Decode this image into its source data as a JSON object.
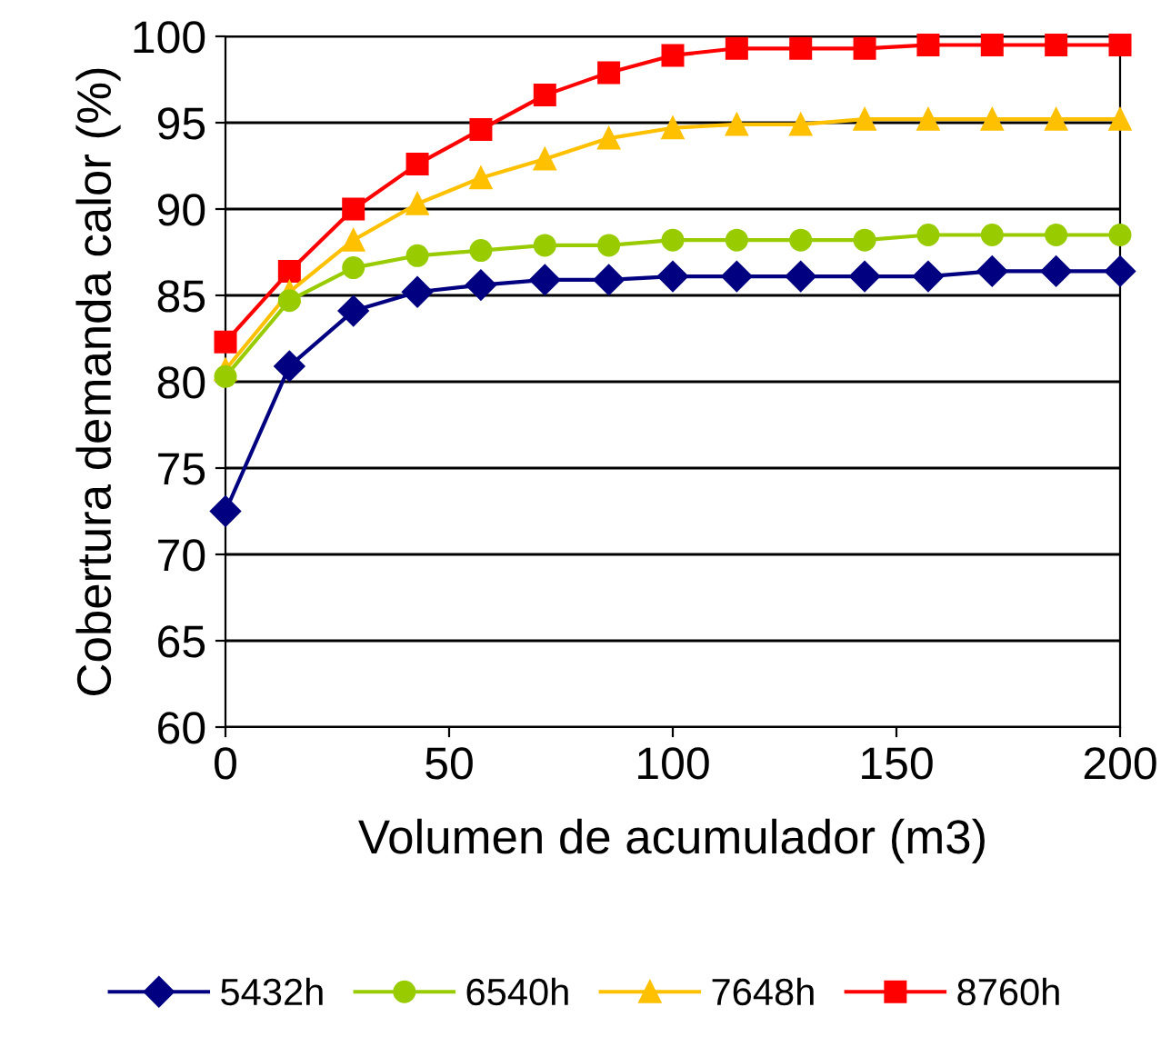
{
  "chart_data": {
    "type": "line",
    "xlabel": "Volumen de acumulador (m3)",
    "ylabel": "Cobertura demanda calor (%)",
    "x": [
      0,
      14.3,
      28.6,
      42.9,
      57.1,
      71.4,
      85.7,
      100,
      114.3,
      128.6,
      142.9,
      157.1,
      171.4,
      185.7,
      200
    ],
    "series": [
      {
        "name": "5432h",
        "color": "#000080",
        "marker": "diamond",
        "values": [
          72.5,
          80.9,
          84.1,
          85.2,
          85.6,
          85.9,
          85.9,
          86.1,
          86.1,
          86.1,
          86.1,
          86.1,
          86.4,
          86.4,
          86.4
        ]
      },
      {
        "name": "6540h",
        "color": "#99cc00",
        "marker": "circle",
        "values": [
          80.3,
          84.7,
          86.6,
          87.3,
          87.6,
          87.9,
          87.9,
          88.2,
          88.2,
          88.2,
          88.2,
          88.5,
          88.5,
          88.5,
          88.5
        ]
      },
      {
        "name": "7648h",
        "color": "#ffc000",
        "marker": "triangle",
        "values": [
          80.7,
          85.2,
          88.2,
          90.3,
          91.8,
          92.9,
          94.1,
          94.7,
          94.9,
          94.9,
          95.2,
          95.2,
          95.2,
          95.2,
          95.2
        ]
      },
      {
        "name": "8760h",
        "color": "#ff0000",
        "marker": "square",
        "values": [
          82.3,
          86.4,
          90.0,
          92.6,
          94.6,
          96.6,
          97.9,
          98.9,
          99.3,
          99.3,
          99.3,
          99.5,
          99.5,
          99.5,
          99.5
        ]
      }
    ],
    "xlim": [
      0,
      200
    ],
    "xticks": [
      0,
      50,
      100,
      150,
      200
    ],
    "ylim": [
      60,
      100
    ],
    "yticks": [
      60,
      65,
      70,
      75,
      80,
      85,
      90,
      95,
      100
    ],
    "grid": "y",
    "legend": "bottom"
  }
}
